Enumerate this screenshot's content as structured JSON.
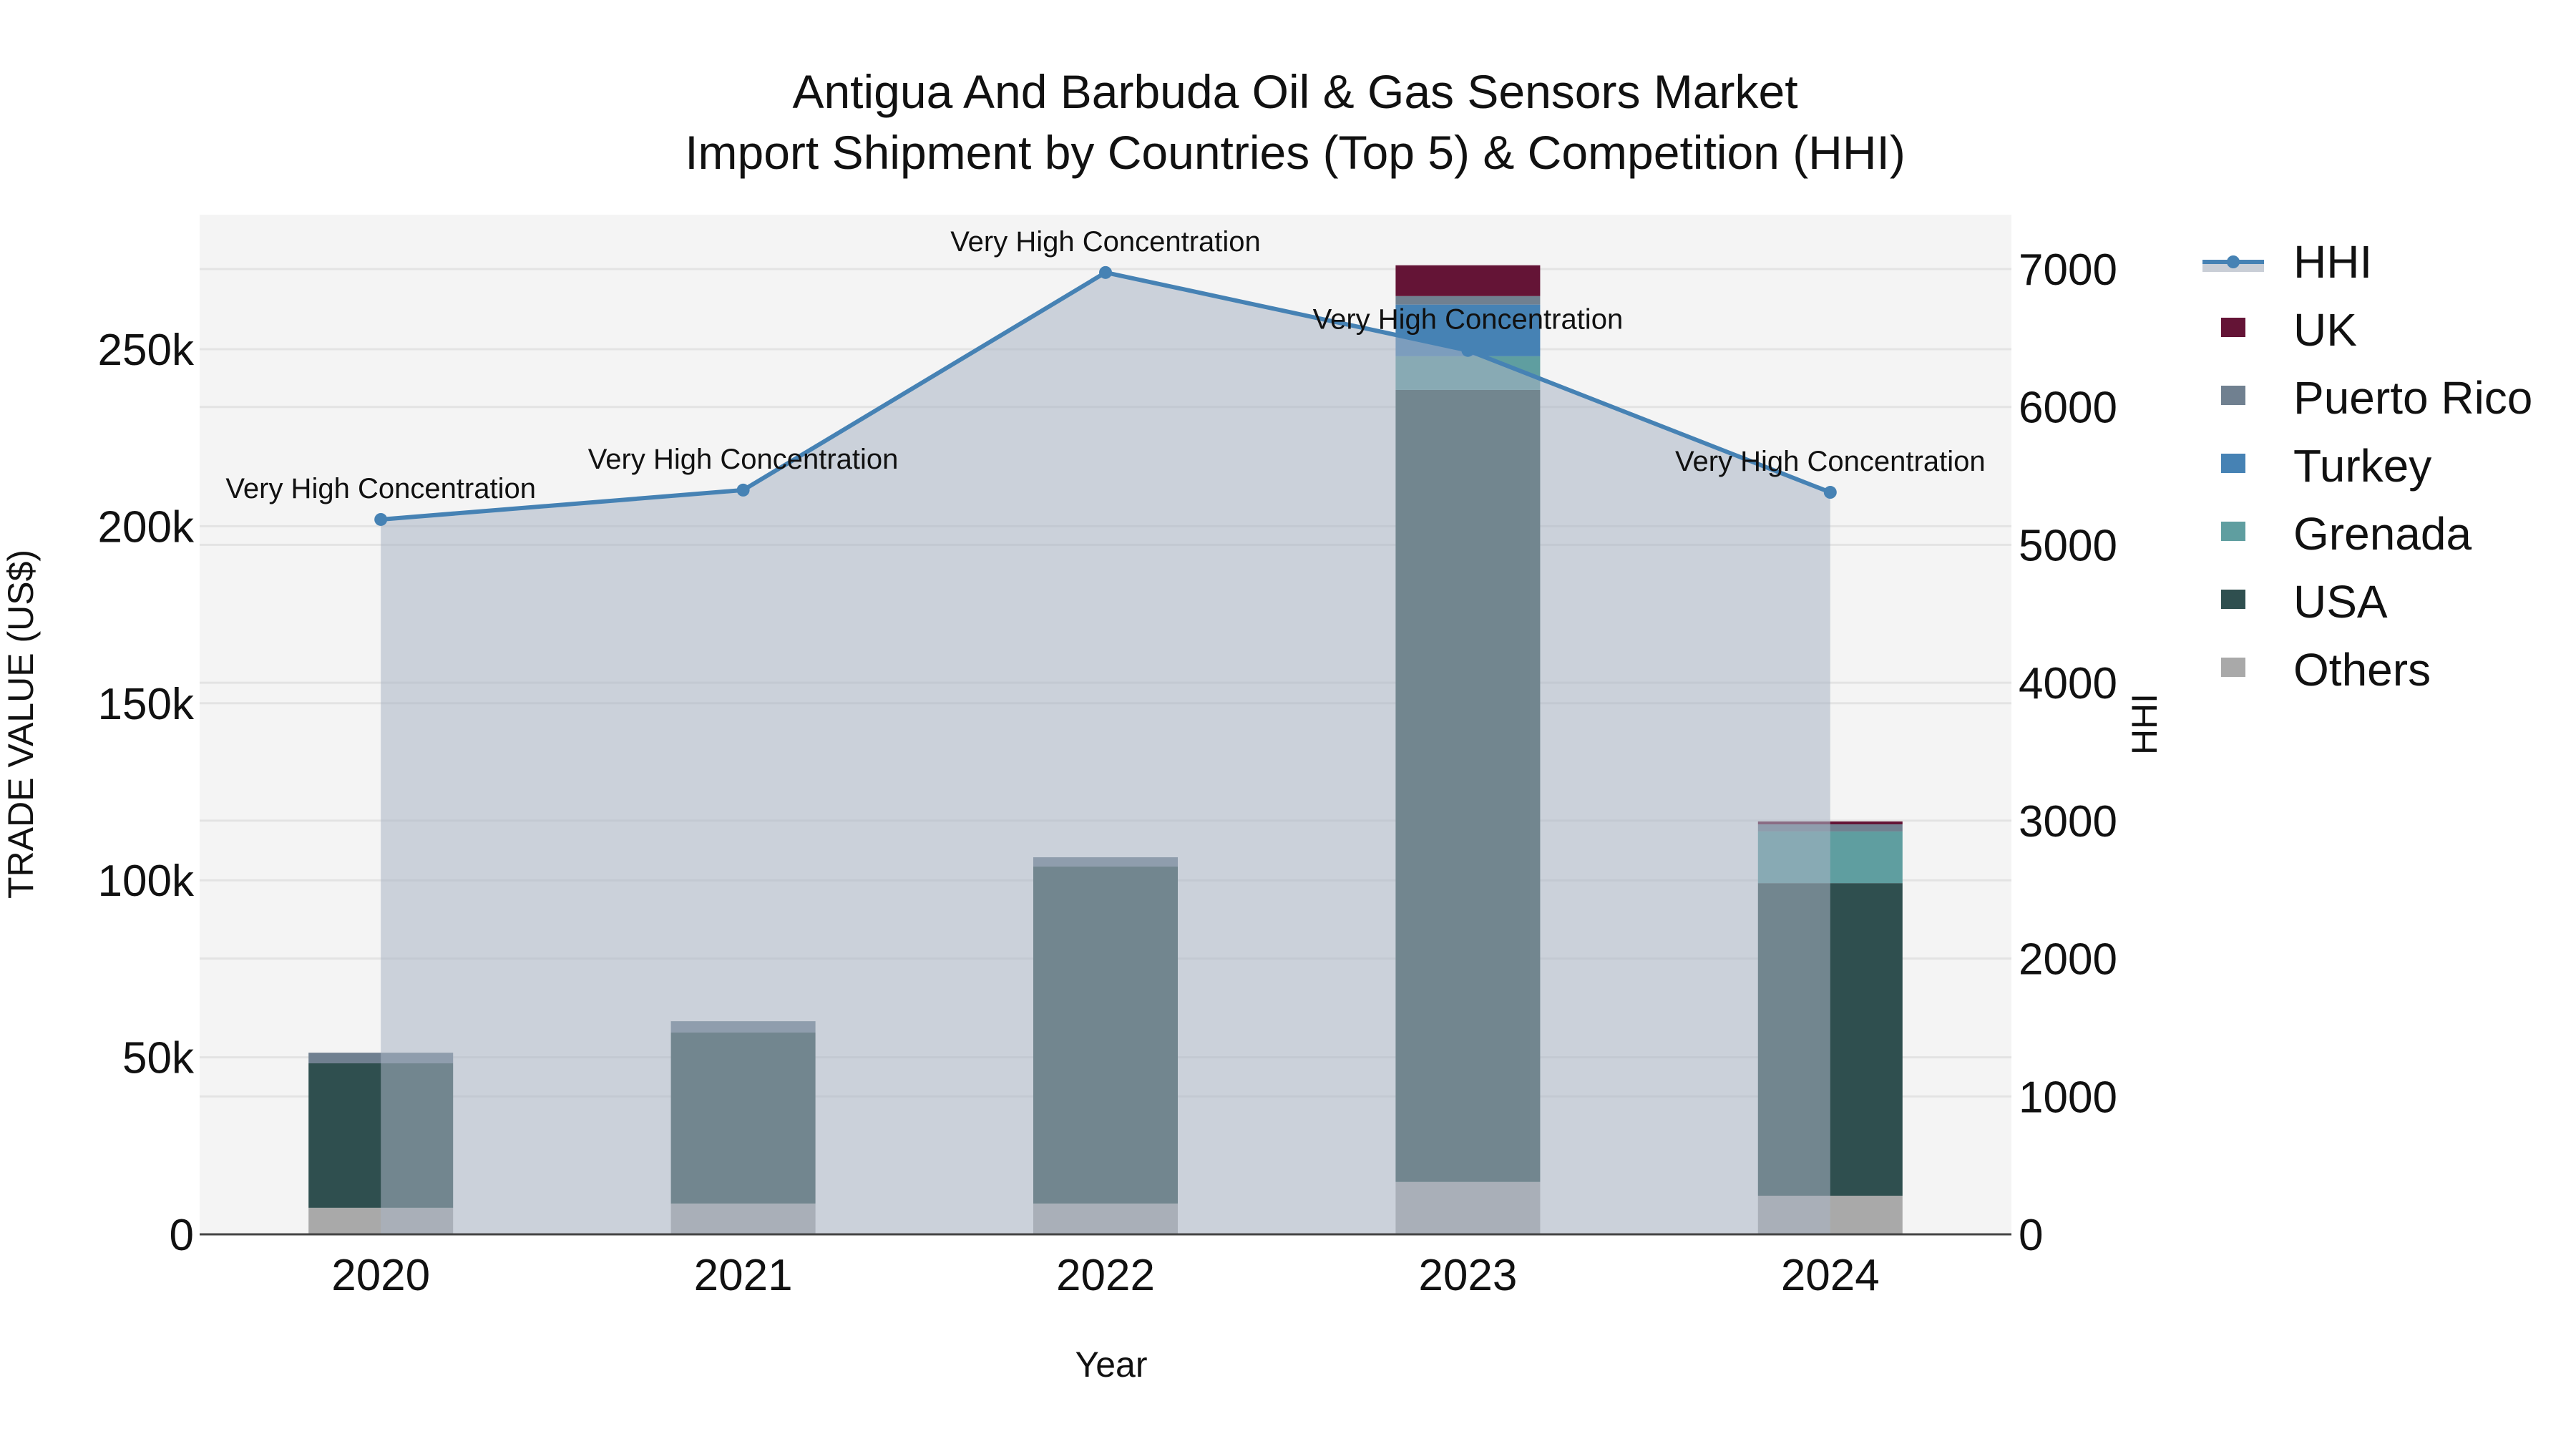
{
  "title": {
    "line1": "Antigua And Barbuda Oil & Gas Sensors Market",
    "line2": "Import Shipment by Countries (Top 5) & Competition (HHI)"
  },
  "axes": {
    "x_title": "Year",
    "y_left_title": "TRADE VALUE (US$)",
    "y_right_title": "HHI",
    "y_left_ticks": [
      "0",
      "50k",
      "100k",
      "150k",
      "200k",
      "250k"
    ],
    "y_right_ticks": [
      "0",
      "1000",
      "2000",
      "3000",
      "4000",
      "5000",
      "6000",
      "7000"
    ]
  },
  "legend": {
    "items": [
      {
        "label": "HHI",
        "type": "line",
        "color": "#4682b4",
        "fill": "#c9ced6"
      },
      {
        "label": "UK",
        "type": "box",
        "color": "#641436"
      },
      {
        "label": "Puerto Rico",
        "type": "box",
        "color": "#708090"
      },
      {
        "label": "Turkey",
        "type": "box",
        "color": "#4682b4"
      },
      {
        "label": "Grenada",
        "type": "box",
        "color": "#5f9ea0"
      },
      {
        "label": "USA",
        "type": "box",
        "color": "#2f4f4f"
      },
      {
        "label": "Others",
        "type": "box",
        "color": "#a9a9a9"
      }
    ]
  },
  "colors": {
    "plot_bg": "#f4f4f4",
    "grid": "#e3e3e3",
    "hhi_line": "#4682b4",
    "hhi_area": "rgba(170,180,196,0.55)"
  },
  "chart_data": {
    "type": "bar",
    "stacked": true,
    "title": "Antigua And Barbuda Oil & Gas Sensors Market Import Shipment by Countries (Top 5) & Competition (HHI)",
    "xlabel": "Year",
    "ylabel": "TRADE VALUE (US$)",
    "y2label": "HHI",
    "categories": [
      "2020",
      "2021",
      "2022",
      "2023",
      "2024"
    ],
    "ylim": [
      0,
      288000
    ],
    "y2lim": [
      0,
      7400
    ],
    "series": [
      {
        "name": "Others",
        "color": "#a9a9a9",
        "values": [
          7500,
          8700,
          8700,
          14800,
          10900
        ]
      },
      {
        "name": "USA",
        "color": "#2f4f4f",
        "values": [
          40800,
          48300,
          95200,
          223700,
          88300
        ]
      },
      {
        "name": "Grenada",
        "color": "#5f9ea0",
        "values": [
          0,
          0,
          0,
          9500,
          14600
        ]
      },
      {
        "name": "Turkey",
        "color": "#4682b4",
        "values": [
          0,
          0,
          0,
          14600,
          0
        ]
      },
      {
        "name": "Puerto Rico",
        "color": "#708090",
        "values": [
          3000,
          3200,
          2600,
          2400,
          2000
        ]
      },
      {
        "name": "UK",
        "color": "#641436",
        "values": [
          0,
          0,
          0,
          8700,
          800
        ]
      }
    ],
    "hhi": {
      "name": "HHI",
      "type": "line+area",
      "axis": "right",
      "values": [
        5184,
        5397,
        6975,
        6410,
        5381
      ],
      "annotations": [
        "Very High Concentration",
        "Very High Concentration",
        "Very High Concentration",
        "Very High Concentration",
        "Very High Concentration"
      ]
    },
    "legend_position": "right",
    "grid": true
  }
}
